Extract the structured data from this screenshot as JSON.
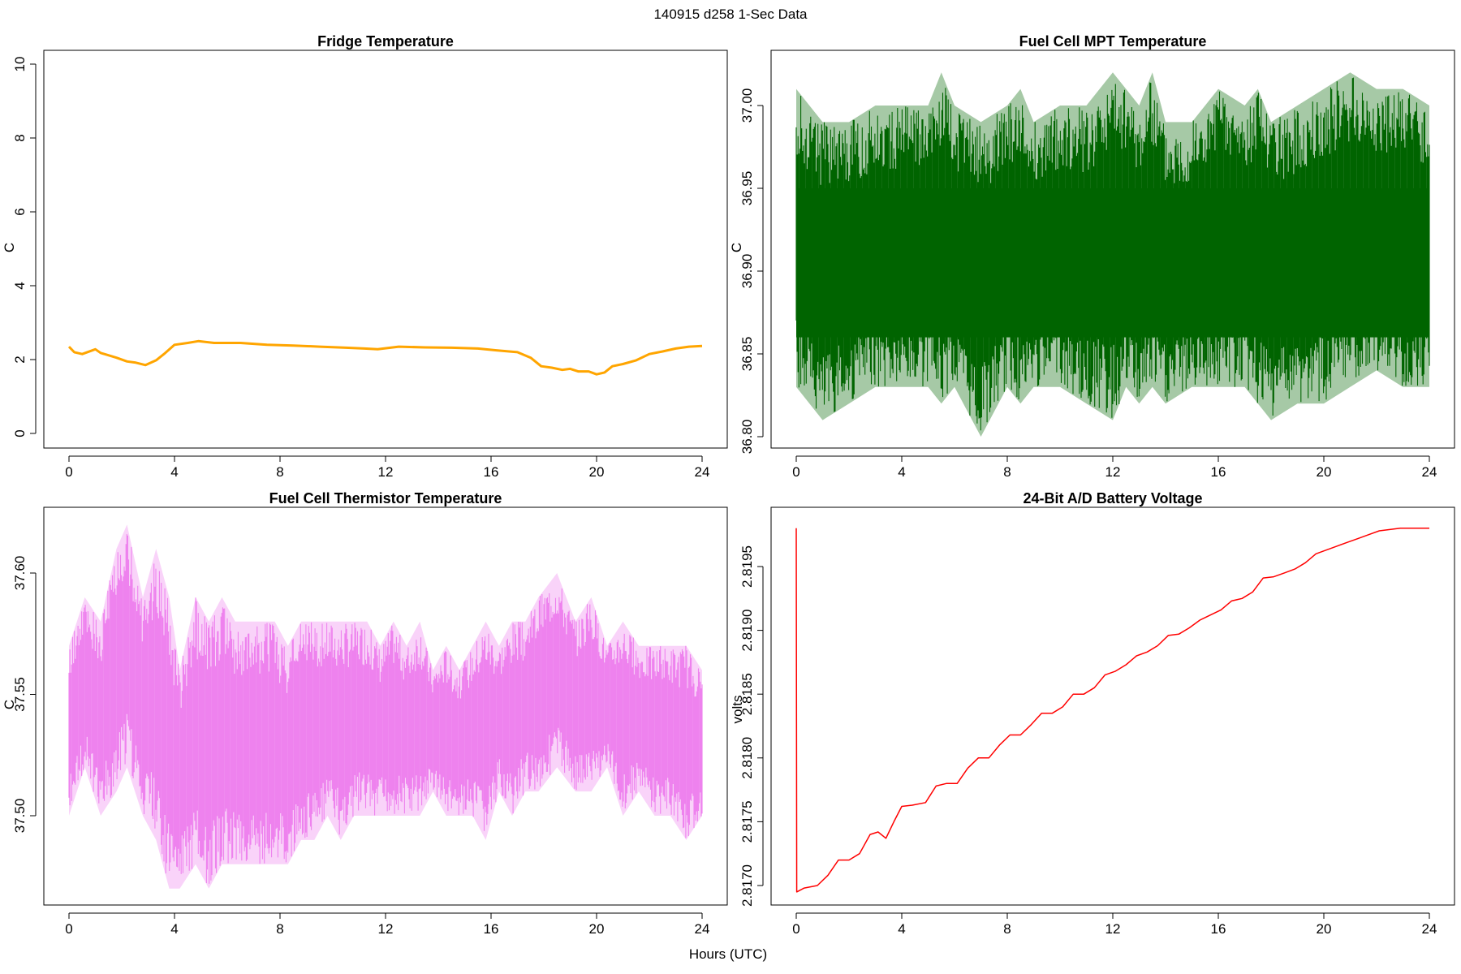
{
  "page_title": "140915   d258   1-Sec Data",
  "shared_xlabel": "Hours (UTC)",
  "chart_data": [
    {
      "type": "line",
      "title": "Fridge Temperature",
      "xlabel": "",
      "ylabel": "C",
      "xlim": [
        0,
        24
      ],
      "ylim": [
        0,
        10
      ],
      "xticks": [
        0,
        4,
        8,
        12,
        16,
        20,
        24
      ],
      "yticks": [
        0,
        2,
        4,
        6,
        8,
        10
      ],
      "ytick_labels": [
        "0",
        "2",
        "4",
        "6",
        "8",
        "10"
      ],
      "color": "#FFA500",
      "series": [
        {
          "x": [
            0,
            0.2,
            0.5,
            1.0,
            1.2,
            1.8,
            2.2,
            2.5,
            2.9,
            3.3,
            3.6,
            4.0,
            4.5,
            4.9,
            5.5,
            6.5,
            7.5,
            8.5,
            9.5,
            10.5,
            11.2,
            11.7,
            12.5,
            13.5,
            14.5,
            15.5,
            16.2,
            17.0,
            17.5,
            17.9,
            18.3,
            18.7,
            19.0,
            19.3,
            19.7,
            20.0,
            20.3,
            20.6,
            21.0,
            21.5,
            22.0,
            22.5,
            23.0,
            23.5,
            24.0
          ],
          "y": [
            2.35,
            2.2,
            2.15,
            2.28,
            2.18,
            2.05,
            1.95,
            1.92,
            1.85,
            1.98,
            2.15,
            2.4,
            2.45,
            2.5,
            2.45,
            2.45,
            2.4,
            2.38,
            2.35,
            2.32,
            2.3,
            2.28,
            2.35,
            2.33,
            2.32,
            2.3,
            2.25,
            2.2,
            2.05,
            1.82,
            1.78,
            1.72,
            1.75,
            1.68,
            1.68,
            1.6,
            1.65,
            1.82,
            1.88,
            1.98,
            2.15,
            2.22,
            2.3,
            2.35,
            2.37
          ]
        }
      ]
    },
    {
      "type": "line",
      "title": "Fuel Cell MPT Temperature",
      "xlabel": "",
      "ylabel": "C",
      "xlim": [
        0,
        24
      ],
      "ylim": [
        36.8,
        37.02
      ],
      "xticks": [
        0,
        4,
        8,
        12,
        16,
        20,
        24
      ],
      "yticks": [
        36.8,
        36.85,
        36.9,
        36.95,
        37.0
      ],
      "ytick_labels": [
        "36.80",
        "36.85",
        "36.90",
        "36.95",
        "37.00"
      ],
      "color": "#006400",
      "series": [
        {
          "x": [
            0,
            1,
            2,
            3,
            4,
            5,
            5.5,
            6,
            7,
            8,
            8.5,
            9,
            10,
            11,
            12,
            12.5,
            13,
            13.5,
            14,
            15,
            16,
            17,
            17.5,
            18,
            19,
            20,
            21,
            22,
            23,
            24
          ],
          "ymin": [
            36.83,
            36.81,
            36.82,
            36.83,
            36.83,
            36.83,
            36.82,
            36.83,
            36.8,
            36.83,
            36.82,
            36.83,
            36.83,
            36.82,
            36.81,
            36.83,
            36.82,
            36.83,
            36.82,
            36.83,
            36.83,
            36.83,
            36.82,
            36.81,
            36.82,
            36.82,
            36.83,
            36.84,
            36.83,
            36.83
          ],
          "ymax": [
            37.01,
            36.99,
            36.99,
            37.0,
            37.0,
            37.0,
            37.02,
            37.0,
            36.99,
            37.0,
            37.01,
            36.99,
            37.0,
            37.0,
            37.02,
            37.01,
            37.0,
            37.02,
            36.99,
            36.99,
            37.01,
            37.0,
            37.01,
            36.99,
            37.0,
            37.01,
            37.02,
            37.01,
            37.01,
            37.0
          ],
          "core_low": 36.86,
          "core_high": 36.95
        }
      ]
    },
    {
      "type": "line",
      "title": "Fuel Cell Thermistor Temperature",
      "xlabel": "",
      "ylabel": "C",
      "xlim": [
        0,
        24
      ],
      "ylim": [
        37.465,
        37.62
      ],
      "xticks": [
        0,
        4,
        8,
        12,
        16,
        20,
        24
      ],
      "yticks": [
        37.5,
        37.55,
        37.6
      ],
      "ytick_labels": [
        "37.50",
        "37.55",
        "37.60"
      ],
      "color": "#EE82EE",
      "series": [
        {
          "x": [
            0,
            0.6,
            1.2,
            1.8,
            2.2,
            2.8,
            3.3,
            3.8,
            4.2,
            4.8,
            5.3,
            5.8,
            6.3,
            6.8,
            7.3,
            7.8,
            8.3,
            8.8,
            9.3,
            9.8,
            10.3,
            10.8,
            11.3,
            11.8,
            12.3,
            12.8,
            13.3,
            13.8,
            14.3,
            14.8,
            15.3,
            15.8,
            16.3,
            16.8,
            17.3,
            17.8,
            18.5,
            19.2,
            19.8,
            20.4,
            21.0,
            21.6,
            22.2,
            22.8,
            23.4,
            24.0
          ],
          "ymin": [
            37.5,
            37.52,
            37.5,
            37.51,
            37.52,
            37.5,
            37.49,
            37.47,
            37.47,
            37.48,
            37.47,
            37.48,
            37.48,
            37.48,
            37.48,
            37.48,
            37.48,
            37.49,
            37.49,
            37.5,
            37.49,
            37.5,
            37.5,
            37.5,
            37.5,
            37.5,
            37.5,
            37.51,
            37.5,
            37.5,
            37.5,
            37.49,
            37.51,
            37.5,
            37.51,
            37.51,
            37.52,
            37.51,
            37.51,
            37.52,
            37.5,
            37.51,
            37.5,
            37.5,
            37.49,
            37.5
          ],
          "ymax": [
            37.57,
            37.59,
            37.58,
            37.61,
            37.62,
            37.59,
            37.61,
            37.59,
            37.56,
            37.59,
            37.58,
            37.59,
            37.58,
            37.58,
            37.58,
            37.58,
            37.57,
            37.58,
            37.58,
            37.58,
            37.58,
            37.58,
            37.58,
            37.57,
            37.58,
            37.57,
            37.58,
            37.56,
            37.57,
            37.56,
            37.57,
            37.58,
            37.57,
            37.58,
            37.58,
            37.59,
            37.6,
            37.58,
            37.59,
            37.57,
            37.58,
            37.57,
            37.57,
            37.57,
            37.57,
            37.56
          ]
        }
      ]
    },
    {
      "type": "line",
      "title": "24-Bit A/D Battery Voltage",
      "xlabel": "",
      "ylabel": "volts",
      "xlim": [
        0,
        24
      ],
      "ylim": [
        2.8168,
        2.8199
      ],
      "xticks": [
        0,
        4,
        8,
        12,
        16,
        20,
        24
      ],
      "yticks": [
        2.817,
        2.8175,
        2.818,
        2.8185,
        2.819,
        2.8195
      ],
      "ytick_labels": [
        "2.8170",
        "2.8175",
        "2.8180",
        "2.8185",
        "2.8190",
        "2.8195"
      ],
      "color": "#FF0000",
      "series": [
        {
          "x": [
            0,
            0.02,
            0.3,
            0.8,
            1.2,
            1.6,
            2.0,
            2.4,
            2.8,
            3.1,
            3.4,
            3.7,
            4.0,
            4.4,
            4.9,
            5.3,
            5.7,
            6.1,
            6.5,
            6.9,
            7.3,
            7.7,
            8.1,
            8.5,
            8.9,
            9.3,
            9.7,
            10.1,
            10.5,
            10.9,
            11.3,
            11.7,
            12.1,
            12.5,
            12.9,
            13.3,
            13.7,
            14.1,
            14.5,
            14.9,
            15.3,
            15.7,
            16.1,
            16.5,
            16.9,
            17.3,
            17.7,
            18.1,
            18.5,
            18.9,
            19.3,
            19.7,
            20.1,
            20.5,
            20.9,
            21.3,
            21.7,
            22.1,
            22.5,
            22.9,
            23.3,
            23.7,
            24.0
          ],
          "y": [
            2.8198,
            2.81695,
            2.81698,
            2.817,
            2.81708,
            2.8172,
            2.8172,
            2.81725,
            2.8174,
            2.81742,
            2.81737,
            2.8175,
            2.81762,
            2.81763,
            2.81765,
            2.81778,
            2.8178,
            2.8178,
            2.81792,
            2.818,
            2.818,
            2.8181,
            2.81818,
            2.81818,
            2.81826,
            2.81835,
            2.81835,
            2.8184,
            2.8185,
            2.8185,
            2.81855,
            2.81865,
            2.81868,
            2.81873,
            2.8188,
            2.81883,
            2.81888,
            2.81896,
            2.81897,
            2.81902,
            2.81908,
            2.81912,
            2.81916,
            2.81923,
            2.81925,
            2.8193,
            2.81941,
            2.81942,
            2.81945,
            2.81948,
            2.81953,
            2.8196,
            2.81963,
            2.81966,
            2.81969,
            2.81972,
            2.81975,
            2.81978,
            2.81979,
            2.8198,
            2.8198,
            2.8198,
            2.8198
          ]
        }
      ]
    }
  ]
}
